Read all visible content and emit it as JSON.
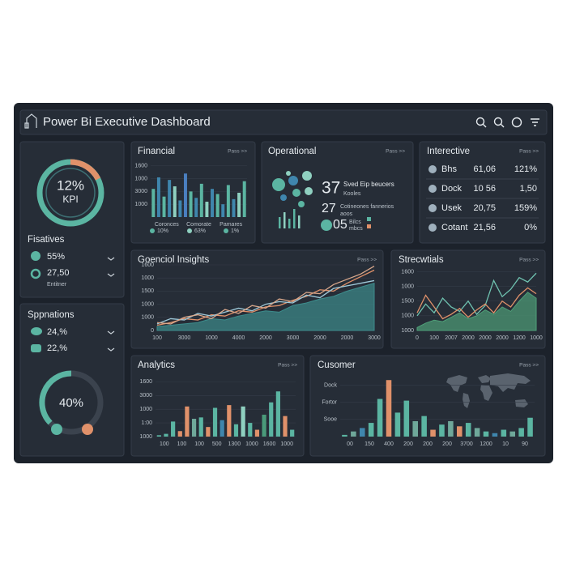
{
  "header": {
    "title": "Power Bi Executive Dashboard"
  },
  "kpi": {
    "value": "12%",
    "label": "KPI"
  },
  "fisatives": {
    "title": "Fisatives",
    "items": [
      {
        "value": "55%"
      },
      {
        "value": "27,50",
        "sub": "Entitner"
      }
    ]
  },
  "sppnations": {
    "title": "Sppnations",
    "items": [
      "24,%",
      "22,%"
    ],
    "gauge": "40%"
  },
  "financial": {
    "title": "Financial",
    "action": "Pass >>",
    "legend": [
      "10%",
      "63%",
      "1%"
    ],
    "chart": {
      "type": "bar",
      "ylim": [
        0,
        4.3
      ],
      "yticks": [
        {
          "value": 4,
          "label": "1600"
        },
        {
          "value": 3,
          "label": "1000"
        },
        {
          "value": 2,
          "label": "3000"
        },
        {
          "value": 1,
          "label": "1000"
        }
      ],
      "x_labels": [
        "Coronces",
        "Comorate",
        "Pamares"
      ],
      "values": [
        2.2,
        3.1,
        1.6,
        2.9,
        2.4,
        1.3,
        3.4,
        2.0,
        1.5,
        2.6,
        1.2,
        2.2,
        1.8,
        1.0,
        2.5,
        1.4,
        1.9,
        2.8
      ],
      "colors": [
        "#5bb5a2",
        "#3f86ad",
        "#5bb5a2",
        "#3f86ad",
        "#8fd0c0",
        "#3f86ad",
        "#4a7fc0",
        "#5bb5a2",
        "#3f86ad",
        "#5bb5a2",
        "#8fd0c0",
        "#3f86ad",
        "#5bb5a2",
        "#3f86ad",
        "#5bb5a2",
        "#3f86ad",
        "#8fd0c0",
        "#5bb5a2"
      ]
    }
  },
  "operational": {
    "title": "Operational",
    "action": "Pass >>",
    "stats": [
      {
        "value": "37",
        "label": "Sved Eip beucers",
        "sub": "Kooles"
      },
      {
        "value": "27",
        "label": "Cotineones fannerios",
        "sub": "aoos"
      },
      {
        "value": "05",
        "label": "Bilcs",
        "sub": "mbcs"
      }
    ]
  },
  "interective": {
    "title": "Interective",
    "action": "Pass >>",
    "rows": [
      [
        "Bhs",
        "61,06",
        "121%"
      ],
      [
        "Dock",
        "10 56",
        "1,50"
      ],
      [
        "Usek",
        "20,75",
        "159%"
      ],
      [
        "Cotant",
        "21,56",
        "0%"
      ]
    ]
  },
  "insights": {
    "title": "Goenciol Insights",
    "action": "Pass >>",
    "chart": {
      "type": "line",
      "xlim": [
        0,
        8
      ],
      "ylim": [
        0,
        5
      ],
      "x": [
        0,
        0.5,
        1,
        1.5,
        2,
        2.5,
        3,
        3.5,
        4,
        4.5,
        5,
        5.5,
        6,
        6.5,
        7,
        7.5,
        8
      ],
      "xticks": [
        {
          "value": 0,
          "label": "100"
        },
        {
          "value": 1,
          "label": "3000"
        },
        {
          "value": 2,
          "label": "1000"
        },
        {
          "value": 3,
          "label": "4000"
        },
        {
          "value": 4,
          "label": "2000"
        },
        {
          "value": 5,
          "label": "3000"
        },
        {
          "value": 6,
          "label": "2000"
        },
        {
          "value": 7,
          "label": "2000"
        },
        {
          "value": 8,
          "label": "3000"
        }
      ],
      "yticks": [
        {
          "value": 5,
          "label": "1600"
        },
        {
          "value": 4,
          "label": "1000"
        },
        {
          "value": 3,
          "label": "1500"
        },
        {
          "value": 2,
          "label": "1000"
        },
        {
          "value": 1,
          "label": "1000"
        },
        0
      ],
      "series": [
        {
          "color": "#3d8c8c",
          "area": true,
          "values": [
            0.3,
            0.4,
            0.5,
            0.6,
            0.9,
            0.8,
            1.1,
            1.3,
            1.5,
            1.4,
            1.9,
            2.1,
            2.4,
            2.6,
            3.0,
            3.3,
            3.6
          ]
        },
        {
          "color": "#e0916a",
          "values": [
            0.4,
            0.6,
            0.9,
            0.8,
            1.2,
            1.1,
            1.5,
            1.4,
            1.8,
            1.9,
            2.3,
            2.6,
            3.1,
            3.0,
            3.6,
            4.1,
            4.6
          ]
        },
        {
          "color": "#9ec9d9",
          "values": [
            0.5,
            0.9,
            0.8,
            1.3,
            1.1,
            1.4,
            1.7,
            1.5,
            2.0,
            2.2,
            2.1,
            2.7,
            2.5,
            3.2,
            3.4,
            3.6,
            3.8
          ]
        },
        {
          "color": "#d9a88c",
          "values": [
            0.6,
            0.5,
            1.0,
            1.2,
            0.9,
            1.6,
            1.3,
            1.9,
            1.7,
            2.4,
            2.2,
            2.9,
            2.8,
            3.5,
            3.9,
            4.3,
            4.9
          ]
        }
      ]
    }
  },
  "strecwtials": {
    "title": "Strecwtials",
    "action": "Pass >>",
    "chart": {
      "type": "line",
      "xlim": [
        0,
        7
      ],
      "ylim": [
        0,
        4.3
      ],
      "x": [
        0,
        0.5,
        1,
        1.5,
        2,
        2.5,
        3,
        3.5,
        4,
        4.5,
        5,
        5.5,
        6,
        6.5,
        7
      ],
      "xticks": [
        0,
        {
          "value": 1,
          "label": "100"
        },
        {
          "value": 2,
          "label": "2007"
        },
        {
          "value": 3,
          "label": "2000"
        },
        {
          "value": 4,
          "label": "2000"
        },
        {
          "value": 5,
          "label": "2000"
        },
        {
          "value": 6,
          "label": "1200"
        },
        {
          "value": 7,
          "label": "1000"
        }
      ],
      "yticks": [
        {
          "value": 4,
          "label": "1600"
        },
        {
          "value": 3,
          "label": "1000"
        },
        {
          "value": 2,
          "label": "1500"
        },
        {
          "value": 1,
          "label": "1000"
        },
        {
          "value": 0,
          "label": "1000"
        }
      ],
      "series": [
        {
          "color": "#4f9e78",
          "area": true,
          "values": [
            0.2,
            0.5,
            0.7,
            0.6,
            0.9,
            1.2,
            0.8,
            1.0,
            1.4,
            1.1,
            1.6,
            1.3,
            2.0,
            2.6,
            2.2
          ]
        },
        {
          "color": "#6fc2b0",
          "values": [
            1.0,
            1.8,
            1.2,
            2.2,
            1.6,
            1.3,
            2.0,
            1.1,
            1.7,
            3.4,
            2.3,
            2.8,
            3.6,
            3.3,
            3.9
          ]
        },
        {
          "color": "#e0916a",
          "values": [
            1.2,
            2.4,
            1.6,
            0.8,
            1.1,
            1.5,
            0.9,
            1.4,
            1.8,
            1.2,
            2.0,
            1.6,
            2.4,
            2.9,
            2.5
          ]
        }
      ]
    }
  },
  "analytics": {
    "title": "Analytics",
    "action": "Pass >>",
    "chart": {
      "type": "bar",
      "ylim": [
        0,
        4.2
      ],
      "yticks": [
        {
          "value": 4,
          "label": "1600"
        },
        {
          "value": 3,
          "label": "3000"
        },
        {
          "value": 2,
          "label": "1000"
        },
        {
          "value": 1,
          "label": "1:00"
        },
        {
          "value": 0,
          "label": "1000"
        }
      ],
      "x_labels": [
        "100",
        "100",
        "100",
        "500",
        "1300",
        "1000",
        "1600",
        "1000"
      ],
      "values": [
        0.1,
        0.2,
        1.1,
        0.4,
        2.2,
        1.3,
        1.4,
        0.7,
        2.1,
        1.2,
        2.3,
        0.9,
        2.2,
        1.0,
        0.5,
        1.6,
        2.5,
        3.3,
        1.5,
        0.5
      ],
      "colors": [
        "#5bb5a2",
        "#5bb5a2",
        "#5bb5a2",
        "#e0916a",
        "#e0916a",
        "#6fa89a",
        "#5bb5a2",
        "#e0916a",
        "#5bb5a2",
        "#3f86ad",
        "#e0916a",
        "#5bb5a2",
        "#8fd0c0",
        "#5bb5a2",
        "#e0916a",
        "#4a9a7a",
        "#5bb5a2",
        "#5bb5a2",
        "#e0916a",
        "#5bb5a2"
      ]
    }
  },
  "cusomer": {
    "title": "Cusomer",
    "action": "Pass >>",
    "chart": {
      "type": "bar",
      "ylim": [
        0,
        3.5
      ],
      "yticks": [
        {
          "value": 3,
          "label": "Dock"
        },
        {
          "value": 2,
          "label": "Fortor"
        },
        {
          "value": 1,
          "label": "Sooe"
        }
      ],
      "x_labels": [
        "00",
        "150",
        "400",
        "200",
        "200",
        "200",
        "3700",
        "1200",
        "10",
        "90"
      ],
      "values": [
        0.1,
        0.3,
        0.5,
        0.8,
        2.2,
        3.3,
        1.4,
        2.1,
        0.9,
        1.2,
        0.4,
        0.7,
        0.9,
        0.6,
        0.8,
        0.5,
        0.3,
        0.2,
        0.4,
        0.3,
        0.5,
        1.1
      ],
      "colors": [
        "#5bb5a2",
        "#6fa89a",
        "#3f86ad",
        "#5bb5a2",
        "#5bb5a2",
        "#e0916a",
        "#5bb5a2",
        "#5bb5a2",
        "#6fa89a",
        "#5bb5a2",
        "#e0916a",
        "#5bb5a2",
        "#6fa89a",
        "#e0916a",
        "#5bb5a2",
        "#6fa89a",
        "#5bb5a2",
        "#3f86ad",
        "#5bb5a2",
        "#6fa89a",
        "#5bb5a2",
        "#5bb5a2"
      ]
    }
  }
}
